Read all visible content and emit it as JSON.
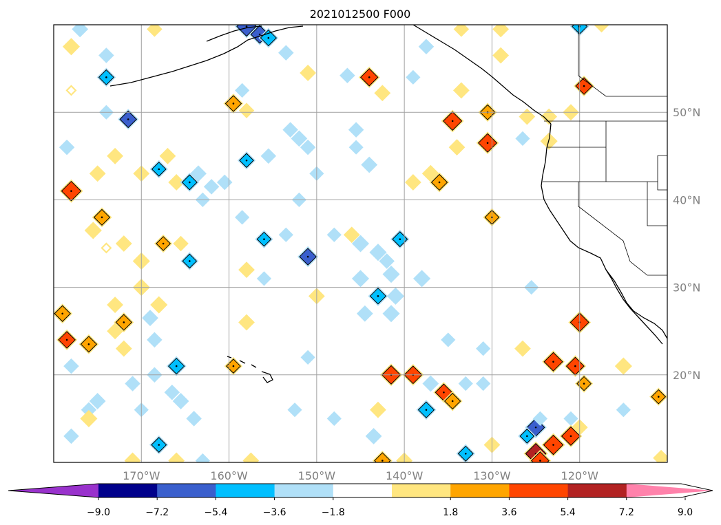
{
  "chart_data": {
    "type": "heatmap",
    "title": "2021012500 F000",
    "projection": "map",
    "grid": true,
    "lon_ticks": [
      {
        "value": -170,
        "label": "170°W"
      },
      {
        "value": -160,
        "label": "160°W"
      },
      {
        "value": -150,
        "label": "150°W"
      },
      {
        "value": -140,
        "label": "140°W"
      },
      {
        "value": -130,
        "label": "130°W"
      },
      {
        "value": -120,
        "label": "120°W"
      }
    ],
    "lat_ticks": [
      {
        "value": 20,
        "label": "20°N"
      },
      {
        "value": 30,
        "label": "30°N"
      },
      {
        "value": 40,
        "label": "40°N"
      },
      {
        "value": 50,
        "label": "50°N"
      }
    ],
    "lon_range": [
      -180,
      -110
    ],
    "lat_range": [
      10,
      60
    ],
    "colorbar": {
      "orientation": "horizontal",
      "extend": "both",
      "levels": [
        -9.0,
        -7.2,
        -5.4,
        -3.6,
        -1.8,
        1.8,
        3.6,
        5.4,
        7.2,
        9.0
      ],
      "tick_labels": [
        "−9.0",
        "−7.2",
        "−5.4",
        "−3.6",
        "−1.8",
        "1.8",
        "3.6",
        "5.4",
        "7.2",
        "9.0"
      ],
      "colors": [
        "#9932cc",
        "#00008b",
        "#3a5fcd",
        "#00bfff",
        "#b0e0f8",
        "#ffffff",
        "#ffe680",
        "#ffa500",
        "#ff4500",
        "#b22222",
        "#ff82ab"
      ]
    },
    "cells": [
      {
        "lon": -177.0,
        "lat": 59.5,
        "v": -3.0
      },
      {
        "lon": -158.0,
        "lat": 59.8,
        "v": -7.0
      },
      {
        "lon": -156.5,
        "lat": 58.9,
        "v": -6.0
      },
      {
        "lon": -155.5,
        "lat": 58.5,
        "v": -5.0
      },
      {
        "lon": -168.5,
        "lat": 59.5,
        "v": 2.5
      },
      {
        "lon": -178.0,
        "lat": 57.5,
        "v": 3.5
      },
      {
        "lon": -174.0,
        "lat": 56.5,
        "v": -2.5
      },
      {
        "lon": -174.0,
        "lat": 54.0,
        "v": -4.5
      },
      {
        "lon": -153.5,
        "lat": 56.8,
        "v": -2.5
      },
      {
        "lon": -151.0,
        "lat": 54.5,
        "v": 3.0
      },
      {
        "lon": -146.5,
        "lat": 54.2,
        "v": -2.5
      },
      {
        "lon": -144.0,
        "lat": 54.0,
        "v": 5.8
      },
      {
        "lon": -142.5,
        "lat": 52.2,
        "v": 3.0
      },
      {
        "lon": -139.0,
        "lat": 54.0,
        "v": -2.0
      },
      {
        "lon": -137.5,
        "lat": 57.5,
        "v": -2.5
      },
      {
        "lon": -133.5,
        "lat": 59.5,
        "v": 2.5
      },
      {
        "lon": -129.0,
        "lat": 59.5,
        "v": 3.0
      },
      {
        "lon": -129.0,
        "lat": 56.5,
        "v": 3.0
      },
      {
        "lon": -133.5,
        "lat": 52.5,
        "v": 3.0
      },
      {
        "lon": -120.0,
        "lat": 59.8,
        "v": -4.5
      },
      {
        "lon": -117.5,
        "lat": 60.0,
        "v": 2.5
      },
      {
        "lon": -119.5,
        "lat": 53.0,
        "v": 5.5
      },
      {
        "lon": -158.5,
        "lat": 52.5,
        "v": -2.0
      },
      {
        "lon": -159.5,
        "lat": 51.0,
        "v": 5.0
      },
      {
        "lon": -158.0,
        "lat": 50.2,
        "v": 2.5
      },
      {
        "lon": -178.0,
        "lat": 52.5,
        "v": 0.0
      },
      {
        "lon": -174.0,
        "lat": 50.0,
        "v": -2.0
      },
      {
        "lon": -171.5,
        "lat": 49.2,
        "v": -5.5
      },
      {
        "lon": -134.5,
        "lat": 49.0,
        "v": 6.5
      },
      {
        "lon": -130.5,
        "lat": 50.0,
        "v": 4.5
      },
      {
        "lon": -126.0,
        "lat": 49.5,
        "v": 3.0
      },
      {
        "lon": -123.5,
        "lat": 49.5,
        "v": 3.0
      },
      {
        "lon": -121.0,
        "lat": 50.0,
        "v": 3.0
      },
      {
        "lon": -123.5,
        "lat": 46.7,
        "v": 3.5
      },
      {
        "lon": -126.5,
        "lat": 47.0,
        "v": -2.0
      },
      {
        "lon": -130.5,
        "lat": 46.5,
        "v": 6.5
      },
      {
        "lon": -134.0,
        "lat": 46.0,
        "v": 3.0
      },
      {
        "lon": -153.0,
        "lat": 48.0,
        "v": -2.5
      },
      {
        "lon": -152.0,
        "lat": 47.0,
        "v": -3.0
      },
      {
        "lon": -151.0,
        "lat": 46.0,
        "v": -2.5
      },
      {
        "lon": -145.5,
        "lat": 48.0,
        "v": -2.5
      },
      {
        "lon": -145.5,
        "lat": 46.0,
        "v": -2.0
      },
      {
        "lon": -144.0,
        "lat": 44.0,
        "v": -3.0
      },
      {
        "lon": -178.5,
        "lat": 46.0,
        "v": -2.5
      },
      {
        "lon": -173.0,
        "lat": 45.0,
        "v": 3.0
      },
      {
        "lon": -167.0,
        "lat": 45.0,
        "v": 3.0
      },
      {
        "lon": -175.0,
        "lat": 43.0,
        "v": 3.0
      },
      {
        "lon": -170.0,
        "lat": 43.0,
        "v": 3.0
      },
      {
        "lon": -168.0,
        "lat": 43.5,
        "v": -4.0
      },
      {
        "lon": -166.0,
        "lat": 42.0,
        "v": 3.0
      },
      {
        "lon": -164.5,
        "lat": 42.0,
        "v": -4.5
      },
      {
        "lon": -163.5,
        "lat": 43.0,
        "v": -3.0
      },
      {
        "lon": -162.0,
        "lat": 41.5,
        "v": -2.5
      },
      {
        "lon": -160.5,
        "lat": 42.0,
        "v": -2.5
      },
      {
        "lon": -158.0,
        "lat": 44.5,
        "v": -4.0
      },
      {
        "lon": -163.0,
        "lat": 40.0,
        "v": -2.0
      },
      {
        "lon": -155.5,
        "lat": 45.0,
        "v": -2.5
      },
      {
        "lon": -150.0,
        "lat": 43.0,
        "v": -2.0
      },
      {
        "lon": -152.0,
        "lat": 40.0,
        "v": -2.0
      },
      {
        "lon": -178.0,
        "lat": 41.0,
        "v": 7.0
      },
      {
        "lon": -139.0,
        "lat": 42.0,
        "v": 3.0
      },
      {
        "lon": -137.0,
        "lat": 43.0,
        "v": 3.5
      },
      {
        "lon": -136.0,
        "lat": 42.0,
        "v": 5.0
      },
      {
        "lon": -130.0,
        "lat": 38.0,
        "v": 4.0
      },
      {
        "lon": -158.5,
        "lat": 38.0,
        "v": -2.0
      },
      {
        "lon": -174.5,
        "lat": 38.0,
        "v": 5.0
      },
      {
        "lon": -175.5,
        "lat": 36.5,
        "v": 3.5
      },
      {
        "lon": -174.0,
        "lat": 34.5,
        "v": 0.0
      },
      {
        "lon": -172.0,
        "lat": 35.0,
        "v": 3.0
      },
      {
        "lon": -167.5,
        "lat": 35.0,
        "v": 4.0
      },
      {
        "lon": -165.5,
        "lat": 35.0,
        "v": 2.5
      },
      {
        "lon": -170.0,
        "lat": 33.0,
        "v": 3.5
      },
      {
        "lon": -164.5,
        "lat": 33.0,
        "v": -4.0
      },
      {
        "lon": -158.0,
        "lat": 32.0,
        "v": 3.0
      },
      {
        "lon": -156.0,
        "lat": 35.5,
        "v": -4.0
      },
      {
        "lon": -153.5,
        "lat": 36.0,
        "v": -2.0
      },
      {
        "lon": -151.0,
        "lat": 33.5,
        "v": -5.5
      },
      {
        "lon": -148.0,
        "lat": 36.0,
        "v": -2.0
      },
      {
        "lon": -146.0,
        "lat": 36.0,
        "v": 3.0
      },
      {
        "lon": -145.0,
        "lat": 35.0,
        "v": -3.5
      },
      {
        "lon": -143.0,
        "lat": 34.0,
        "v": -3.5
      },
      {
        "lon": -142.0,
        "lat": 33.0,
        "v": -2.5
      },
      {
        "lon": -140.5,
        "lat": 35.5,
        "v": -4.5
      },
      {
        "lon": -145.0,
        "lat": 31.0,
        "v": -3.5
      },
      {
        "lon": -141.5,
        "lat": 31.5,
        "v": -3.5
      },
      {
        "lon": -138.0,
        "lat": 31.0,
        "v": -3.5
      },
      {
        "lon": -156.0,
        "lat": 31.0,
        "v": -2.0
      },
      {
        "lon": -170.0,
        "lat": 30.0,
        "v": 3.5
      },
      {
        "lon": -150.0,
        "lat": 29.0,
        "v": 3.0
      },
      {
        "lon": -143.0,
        "lat": 29.0,
        "v": -5.0
      },
      {
        "lon": -141.0,
        "lat": 29.0,
        "v": -3.5
      },
      {
        "lon": -144.5,
        "lat": 27.0,
        "v": -3.0
      },
      {
        "lon": -141.5,
        "lat": 27.0,
        "v": -3.5
      },
      {
        "lon": -125.5,
        "lat": 30.0,
        "v": -2.0
      },
      {
        "lon": -173.0,
        "lat": 28.0,
        "v": 3.0
      },
      {
        "lon": -168.0,
        "lat": 28.0,
        "v": 3.5
      },
      {
        "lon": -179.0,
        "lat": 27.0,
        "v": 5.0
      },
      {
        "lon": -172.0,
        "lat": 26.0,
        "v": 5.0
      },
      {
        "lon": -173.0,
        "lat": 25.0,
        "v": 3.0
      },
      {
        "lon": -169.0,
        "lat": 26.5,
        "v": -3.0
      },
      {
        "lon": -158.0,
        "lat": 26.0,
        "v": 3.0
      },
      {
        "lon": -120.0,
        "lat": 26.0,
        "v": 6.5
      },
      {
        "lon": -178.5,
        "lat": 24.0,
        "v": 5.5
      },
      {
        "lon": -176.0,
        "lat": 23.5,
        "v": 5.0
      },
      {
        "lon": -168.5,
        "lat": 24.0,
        "v": -2.5
      },
      {
        "lon": -172.0,
        "lat": 23.0,
        "v": 3.0
      },
      {
        "lon": -135.0,
        "lat": 24.0,
        "v": -2.0
      },
      {
        "lon": -131.0,
        "lat": 23.0,
        "v": -2.0
      },
      {
        "lon": -126.5,
        "lat": 23.0,
        "v": 3.0
      },
      {
        "lon": -123.0,
        "lat": 21.5,
        "v": 6.5
      },
      {
        "lon": -120.5,
        "lat": 21.0,
        "v": 6.0
      },
      {
        "lon": -115.0,
        "lat": 21.0,
        "v": 3.5
      },
      {
        "lon": -178.0,
        "lat": 21.0,
        "v": -2.5
      },
      {
        "lon": -166.0,
        "lat": 21.0,
        "v": -5.0
      },
      {
        "lon": -159.5,
        "lat": 21.0,
        "v": 4.0
      },
      {
        "lon": -151.0,
        "lat": 22.0,
        "v": -2.0
      },
      {
        "lon": -141.5,
        "lat": 20.0,
        "v": 6.5
      },
      {
        "lon": -139.0,
        "lat": 20.0,
        "v": 6.0
      },
      {
        "lon": -119.5,
        "lat": 19.0,
        "v": 4.0
      },
      {
        "lon": -168.5,
        "lat": 20.0,
        "v": -2.5
      },
      {
        "lon": -171.0,
        "lat": 19.0,
        "v": -2.5
      },
      {
        "lon": -166.5,
        "lat": 18.0,
        "v": -2.5
      },
      {
        "lon": -175.0,
        "lat": 17.0,
        "v": -3.0
      },
      {
        "lon": -176.0,
        "lat": 16.0,
        "v": -2.5
      },
      {
        "lon": -165.5,
        "lat": 17.0,
        "v": -3.0
      },
      {
        "lon": -170.0,
        "lat": 16.0,
        "v": -2.0
      },
      {
        "lon": -137.0,
        "lat": 19.0,
        "v": -3.0
      },
      {
        "lon": -135.5,
        "lat": 18.0,
        "v": 5.5
      },
      {
        "lon": -134.5,
        "lat": 17.0,
        "v": 5.0
      },
      {
        "lon": -133.0,
        "lat": 19.0,
        "v": -2.0
      },
      {
        "lon": -131.0,
        "lat": 19.0,
        "v": -2.0
      },
      {
        "lon": -137.5,
        "lat": 16.0,
        "v": -5.0
      },
      {
        "lon": -143.0,
        "lat": 16.0,
        "v": 3.0
      },
      {
        "lon": -148.0,
        "lat": 15.0,
        "v": -2.0
      },
      {
        "lon": -152.5,
        "lat": 16.0,
        "v": -2.0
      },
      {
        "lon": -115.0,
        "lat": 16.0,
        "v": -2.0
      },
      {
        "lon": -111.0,
        "lat": 17.5,
        "v": 4.0
      },
      {
        "lon": -176.0,
        "lat": 15.0,
        "v": 3.5
      },
      {
        "lon": -164.0,
        "lat": 15.0,
        "v": -2.5
      },
      {
        "lon": -178.0,
        "lat": 13.0,
        "v": -2.5
      },
      {
        "lon": -143.5,
        "lat": 13.0,
        "v": -3.0
      },
      {
        "lon": -125.0,
        "lat": 14.0,
        "v": -6.0
      },
      {
        "lon": -126.0,
        "lat": 13.0,
        "v": -4.0
      },
      {
        "lon": -124.5,
        "lat": 15.0,
        "v": -2.0
      },
      {
        "lon": -121.0,
        "lat": 15.0,
        "v": -2.0
      },
      {
        "lon": -120.0,
        "lat": 14.0,
        "v": 3.0
      },
      {
        "lon": -123.0,
        "lat": 12.0,
        "v": 7.0
      },
      {
        "lon": -121.0,
        "lat": 13.0,
        "v": 6.5
      },
      {
        "lon": -125.0,
        "lat": 11.0,
        "v": 7.5
      },
      {
        "lon": -133.0,
        "lat": 11.0,
        "v": -4.5
      },
      {
        "lon": -130.0,
        "lat": 12.0,
        "v": 3.0
      },
      {
        "lon": -168.0,
        "lat": 12.0,
        "v": -4.5
      },
      {
        "lon": -171.0,
        "lat": 10.2,
        "v": 3.0
      },
      {
        "lon": -166.0,
        "lat": 10.2,
        "v": 3.0
      },
      {
        "lon": -163.0,
        "lat": 10.2,
        "v": -2.0
      },
      {
        "lon": -157.5,
        "lat": 10.2,
        "v": 3.0
      },
      {
        "lon": -142.5,
        "lat": 10.2,
        "v": 5.0
      },
      {
        "lon": -140.0,
        "lat": 10.2,
        "v": 3.0
      },
      {
        "lon": -124.5,
        "lat": 10.2,
        "v": 6.0
      },
      {
        "lon": -110.7,
        "lat": 10.5,
        "v": 3.0
      }
    ]
  }
}
